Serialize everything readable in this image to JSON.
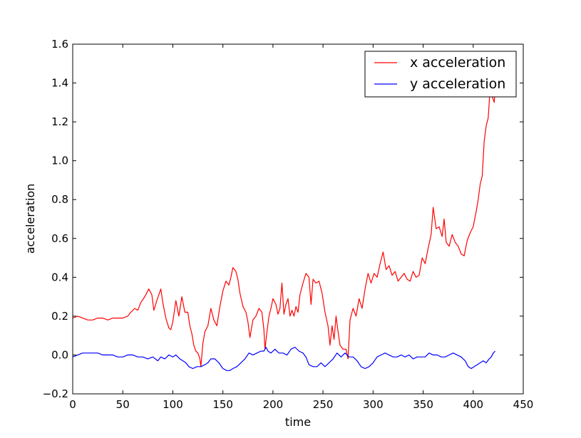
{
  "chart_data": {
    "type": "line",
    "title": "",
    "xlabel": "time",
    "ylabel": "acceleration",
    "xlim": [
      0,
      450
    ],
    "ylim": [
      -0.2,
      1.6
    ],
    "xticks": [
      0,
      50,
      100,
      150,
      200,
      250,
      300,
      350,
      400,
      450
    ],
    "yticks": [
      -0.2,
      0.0,
      0.2,
      0.4,
      0.6,
      0.8,
      1.0,
      1.2,
      1.4,
      1.6
    ],
    "xtick_labels": [
      "0",
      "50",
      "100",
      "150",
      "200",
      "250",
      "300",
      "350",
      "400",
      "450"
    ],
    "ytick_labels": [
      "−0.2",
      "0.0",
      "0.2",
      "0.4",
      "0.6",
      "0.8",
      "1.0",
      "1.2",
      "1.4",
      "1.6"
    ],
    "grid": false,
    "legend_position": "top-right",
    "series": [
      {
        "name": "x acceleration",
        "color": "#ff0000",
        "points": [
          [
            0,
            0.19
          ],
          [
            5,
            0.2
          ],
          [
            10,
            0.19
          ],
          [
            15,
            0.18
          ],
          [
            20,
            0.18
          ],
          [
            25,
            0.19
          ],
          [
            30,
            0.19
          ],
          [
            35,
            0.18
          ],
          [
            40,
            0.19
          ],
          [
            45,
            0.19
          ],
          [
            50,
            0.19
          ],
          [
            55,
            0.2
          ],
          [
            58,
            0.22
          ],
          [
            62,
            0.24
          ],
          [
            65,
            0.23
          ],
          [
            68,
            0.27
          ],
          [
            72,
            0.3
          ],
          [
            76,
            0.34
          ],
          [
            79,
            0.31
          ],
          [
            81,
            0.23
          ],
          [
            84,
            0.28
          ],
          [
            88,
            0.34
          ],
          [
            90,
            0.27
          ],
          [
            93,
            0.19
          ],
          [
            96,
            0.14
          ],
          [
            98,
            0.13
          ],
          [
            100,
            0.17
          ],
          [
            103,
            0.28
          ],
          [
            106,
            0.2
          ],
          [
            109,
            0.3
          ],
          [
            112,
            0.22
          ],
          [
            115,
            0.22
          ],
          [
            117,
            0.15
          ],
          [
            119,
            0.11
          ],
          [
            121,
            0.05
          ],
          [
            123,
            0.02
          ],
          [
            125,
            0.01
          ],
          [
            127,
            -0.02
          ],
          [
            128,
            -0.06
          ],
          [
            130,
            0.06
          ],
          [
            132,
            0.12
          ],
          [
            135,
            0.15
          ],
          [
            138,
            0.24
          ],
          [
            141,
            0.18
          ],
          [
            144,
            0.15
          ],
          [
            147,
            0.25
          ],
          [
            150,
            0.33
          ],
          [
            153,
            0.38
          ],
          [
            156,
            0.36
          ],
          [
            158,
            0.4
          ],
          [
            160,
            0.45
          ],
          [
            163,
            0.43
          ],
          [
            165,
            0.39
          ],
          [
            167,
            0.32
          ],
          [
            170,
            0.25
          ],
          [
            173,
            0.22
          ],
          [
            175,
            0.17
          ],
          [
            177,
            0.09
          ],
          [
            180,
            0.18
          ],
          [
            183,
            0.2
          ],
          [
            186,
            0.24
          ],
          [
            189,
            0.22
          ],
          [
            191,
            0.13
          ],
          [
            192,
            0.03
          ],
          [
            194,
            0.12
          ],
          [
            196,
            0.2
          ],
          [
            198,
            0.24
          ],
          [
            200,
            0.29
          ],
          [
            203,
            0.26
          ],
          [
            205,
            0.21
          ],
          [
            207,
            0.24
          ],
          [
            209,
            0.37
          ],
          [
            211,
            0.21
          ],
          [
            213,
            0.26
          ],
          [
            215,
            0.29
          ],
          [
            217,
            0.2
          ],
          [
            219,
            0.23
          ],
          [
            221,
            0.2
          ],
          [
            223,
            0.25
          ],
          [
            225,
            0.22
          ],
          [
            227,
            0.31
          ],
          [
            230,
            0.37
          ],
          [
            233,
            0.42
          ],
          [
            236,
            0.4
          ],
          [
            238,
            0.26
          ],
          [
            240,
            0.39
          ],
          [
            243,
            0.37
          ],
          [
            246,
            0.38
          ],
          [
            249,
            0.32
          ],
          [
            252,
            0.22
          ],
          [
            255,
            0.15
          ],
          [
            257,
            0.05
          ],
          [
            259,
            0.15
          ],
          [
            261,
            0.08
          ],
          [
            263,
            0.2
          ],
          [
            265,
            0.12
          ],
          [
            267,
            0.05
          ],
          [
            270,
            0.03
          ],
          [
            273,
            0.03
          ],
          [
            275,
            -0.02
          ],
          [
            277,
            0.18
          ],
          [
            280,
            0.24
          ],
          [
            283,
            0.2
          ],
          [
            286,
            0.29
          ],
          [
            289,
            0.24
          ],
          [
            292,
            0.34
          ],
          [
            295,
            0.42
          ],
          [
            298,
            0.37
          ],
          [
            301,
            0.42
          ],
          [
            304,
            0.4
          ],
          [
            307,
            0.47
          ],
          [
            310,
            0.53
          ],
          [
            313,
            0.44
          ],
          [
            316,
            0.46
          ],
          [
            319,
            0.41
          ],
          [
            322,
            0.43
          ],
          [
            325,
            0.38
          ],
          [
            328,
            0.4
          ],
          [
            331,
            0.42
          ],
          [
            334,
            0.39
          ],
          [
            337,
            0.38
          ],
          [
            340,
            0.43
          ],
          [
            343,
            0.4
          ],
          [
            346,
            0.41
          ],
          [
            349,
            0.5
          ],
          [
            352,
            0.47
          ],
          [
            355,
            0.55
          ],
          [
            358,
            0.62
          ],
          [
            360,
            0.76
          ],
          [
            363,
            0.65
          ],
          [
            366,
            0.66
          ],
          [
            369,
            0.61
          ],
          [
            371,
            0.7
          ],
          [
            373,
            0.58
          ],
          [
            376,
            0.56
          ],
          [
            379,
            0.62
          ],
          [
            382,
            0.58
          ],
          [
            385,
            0.56
          ],
          [
            388,
            0.52
          ],
          [
            391,
            0.51
          ],
          [
            394,
            0.59
          ],
          [
            397,
            0.63
          ],
          [
            400,
            0.66
          ],
          [
            403,
            0.74
          ],
          [
            405,
            0.8
          ],
          [
            407,
            0.88
          ],
          [
            409,
            0.92
          ],
          [
            411,
            1.1
          ],
          [
            413,
            1.18
          ],
          [
            415,
            1.22
          ],
          [
            417,
            1.38
          ],
          [
            419,
            1.33
          ],
          [
            421,
            1.3
          ],
          [
            422,
            1.38
          ]
        ]
      },
      {
        "name": "y acceleration",
        "color": "#0000ff",
        "points": [
          [
            0,
            -0.01
          ],
          [
            5,
            0.0
          ],
          [
            10,
            0.01
          ],
          [
            15,
            0.01
          ],
          [
            20,
            0.01
          ],
          [
            25,
            0.01
          ],
          [
            30,
            0.0
          ],
          [
            35,
            0.0
          ],
          [
            40,
            0.0
          ],
          [
            45,
            -0.01
          ],
          [
            50,
            -0.01
          ],
          [
            55,
            0.0
          ],
          [
            60,
            0.0
          ],
          [
            65,
            -0.01
          ],
          [
            70,
            -0.01
          ],
          [
            75,
            -0.02
          ],
          [
            80,
            -0.01
          ],
          [
            85,
            -0.03
          ],
          [
            88,
            -0.01
          ],
          [
            92,
            -0.02
          ],
          [
            96,
            0.0
          ],
          [
            100,
            -0.01
          ],
          [
            103,
            0.0
          ],
          [
            107,
            -0.02
          ],
          [
            110,
            -0.03
          ],
          [
            113,
            -0.04
          ],
          [
            116,
            -0.06
          ],
          [
            120,
            -0.07
          ],
          [
            124,
            -0.06
          ],
          [
            128,
            -0.06
          ],
          [
            132,
            -0.05
          ],
          [
            135,
            -0.04
          ],
          [
            138,
            -0.02
          ],
          [
            142,
            -0.02
          ],
          [
            146,
            -0.04
          ],
          [
            150,
            -0.07
          ],
          [
            154,
            -0.08
          ],
          [
            157,
            -0.08
          ],
          [
            160,
            -0.07
          ],
          [
            164,
            -0.06
          ],
          [
            168,
            -0.04
          ],
          [
            172,
            -0.02
          ],
          [
            176,
            0.01
          ],
          [
            180,
            0.0
          ],
          [
            184,
            0.01
          ],
          [
            188,
            0.02
          ],
          [
            191,
            0.02
          ],
          [
            193,
            0.04
          ],
          [
            195,
            0.02
          ],
          [
            198,
            0.01
          ],
          [
            202,
            0.03
          ],
          [
            206,
            0.01
          ],
          [
            210,
            0.01
          ],
          [
            214,
            0.0
          ],
          [
            218,
            0.03
          ],
          [
            222,
            0.04
          ],
          [
            226,
            0.02
          ],
          [
            230,
            0.01
          ],
          [
            233,
            -0.01
          ],
          [
            236,
            -0.05
          ],
          [
            240,
            -0.06
          ],
          [
            244,
            -0.06
          ],
          [
            248,
            -0.04
          ],
          [
            252,
            -0.06
          ],
          [
            256,
            -0.04
          ],
          [
            260,
            -0.02
          ],
          [
            264,
            0.01
          ],
          [
            268,
            -0.01
          ],
          [
            272,
            0.01
          ],
          [
            276,
            -0.01
          ],
          [
            280,
            -0.01
          ],
          [
            284,
            -0.03
          ],
          [
            288,
            -0.06
          ],
          [
            292,
            -0.07
          ],
          [
            296,
            -0.06
          ],
          [
            300,
            -0.04
          ],
          [
            304,
            -0.01
          ],
          [
            308,
            0.0
          ],
          [
            312,
            0.01
          ],
          [
            316,
            0.0
          ],
          [
            320,
            -0.01
          ],
          [
            324,
            -0.01
          ],
          [
            328,
            0.0
          ],
          [
            332,
            -0.01
          ],
          [
            336,
            0.0
          ],
          [
            340,
            -0.02
          ],
          [
            344,
            -0.01
          ],
          [
            348,
            -0.01
          ],
          [
            352,
            -0.01
          ],
          [
            356,
            0.01
          ],
          [
            360,
            0.0
          ],
          [
            364,
            0.0
          ],
          [
            368,
            -0.01
          ],
          [
            372,
            -0.01
          ],
          [
            376,
            0.0
          ],
          [
            380,
            0.01
          ],
          [
            384,
            0.0
          ],
          [
            388,
            -0.01
          ],
          [
            392,
            -0.03
          ],
          [
            395,
            -0.06
          ],
          [
            398,
            -0.07
          ],
          [
            401,
            -0.06
          ],
          [
            404,
            -0.05
          ],
          [
            407,
            -0.04
          ],
          [
            410,
            -0.03
          ],
          [
            413,
            -0.04
          ],
          [
            416,
            -0.02
          ],
          [
            418,
            -0.01
          ],
          [
            420,
            0.01
          ],
          [
            422,
            0.02
          ]
        ]
      }
    ]
  }
}
